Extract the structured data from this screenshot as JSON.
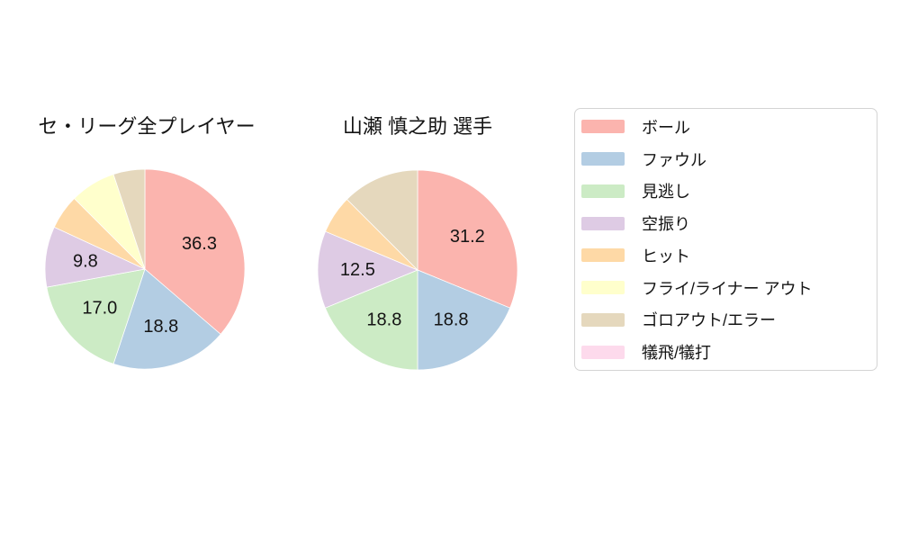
{
  "page": {
    "background": "#ffffff",
    "text_color": "#141414"
  },
  "chart_data": [
    {
      "type": "pie",
      "title": "セ・リーグ全プレイヤー",
      "start_angle_deg": 90,
      "direction": "clockwise",
      "pct_distance": 0.6,
      "categories": [
        "ボール",
        "ファウル",
        "見逃し",
        "空振り",
        "ヒット",
        "フライ/ライナー アウト",
        "ゴロアウト/エラー",
        "犠飛/犠打"
      ],
      "values": [
        36.3,
        18.8,
        17.0,
        9.8,
        5.6,
        7.4,
        5.1,
        0
      ],
      "colors": [
        "#fbb4ae",
        "#b3cde3",
        "#ccebc5",
        "#decbe4",
        "#fed9a6",
        "#ffffcc",
        "#e5d8bd",
        "#fddaec"
      ],
      "pct_labels": [
        "36.3",
        "18.8",
        "17.0",
        "9.8",
        "",
        "",
        "",
        ""
      ]
    },
    {
      "type": "pie",
      "title": "山瀬 慎之助 選手",
      "start_angle_deg": 90,
      "direction": "clockwise",
      "pct_distance": 0.6,
      "categories": [
        "ボール",
        "ファウル",
        "見逃し",
        "空振り",
        "ヒット",
        "フライ/ライナー アウト",
        "ゴロアウト/エラー",
        "犠飛/犠打"
      ],
      "values": [
        31.2,
        18.8,
        18.8,
        12.5,
        6.2,
        0,
        12.5,
        0
      ],
      "colors": [
        "#fbb4ae",
        "#b3cde3",
        "#ccebc5",
        "#decbe4",
        "#fed9a6",
        "#ffffcc",
        "#e5d8bd",
        "#fddaec"
      ],
      "pct_labels": [
        "31.2",
        "18.8",
        "18.8",
        "12.5",
        "",
        "",
        "",
        ""
      ]
    }
  ],
  "legend": {
    "position": "right",
    "items": [
      {
        "label": "ボール",
        "color": "#fbb4ae"
      },
      {
        "label": "ファウル",
        "color": "#b3cde3"
      },
      {
        "label": "見逃し",
        "color": "#ccebc5"
      },
      {
        "label": "空振り",
        "color": "#decbe4"
      },
      {
        "label": "ヒット",
        "color": "#fed9a6"
      },
      {
        "label": "フライ/ライナー アウト",
        "color": "#ffffcc"
      },
      {
        "label": "ゴロアウト/エラー",
        "color": "#e5d8bd"
      },
      {
        "label": "犠飛/犠打",
        "color": "#fddaec"
      }
    ]
  }
}
